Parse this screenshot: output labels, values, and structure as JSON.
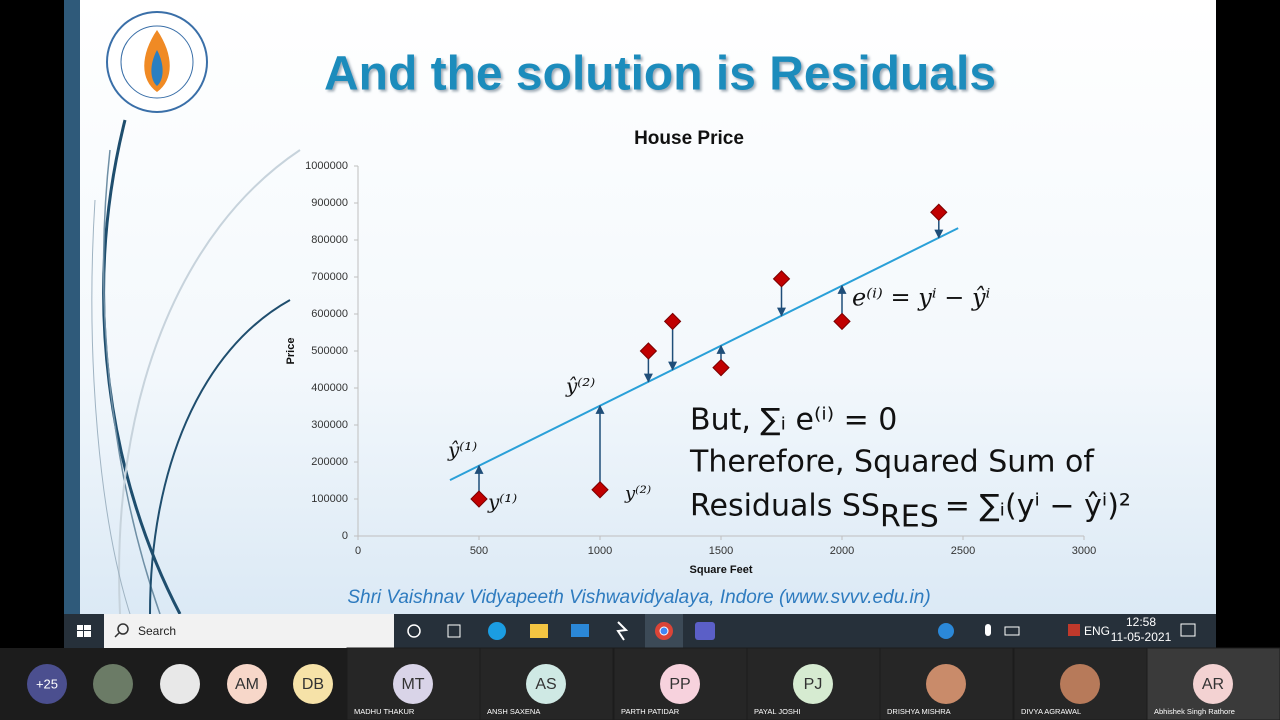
{
  "slide": {
    "title": "And the solution is Residuals",
    "footer": "Shri Vaishnav Vidyapeeth Vishwavidyalaya, Indore (www.svvv.edu.in)",
    "chart_data": {
      "type": "scatter",
      "title": "House Price",
      "x_label": "Square Feet",
      "y_label": "Price",
      "x": [
        500,
        1000,
        1200,
        1300,
        1500,
        1750,
        2000,
        2400
      ],
      "values": [
        100000,
        125000,
        500000,
        580000,
        455000,
        695000,
        580000,
        875000
      ],
      "color": "#c00000",
      "trendline": {
        "x": [
          380,
          2480
        ],
        "values": [
          151000,
          832000
        ],
        "color": "#2aa0d8"
      },
      "xlim": [
        0,
        3000
      ],
      "xticks": [
        0,
        500,
        1000,
        1500,
        2000,
        2500,
        3000
      ],
      "ylim": [
        0,
        1000000
      ],
      "yticks": [
        0,
        100000,
        200000,
        300000,
        400000,
        500000,
        600000,
        700000,
        800000,
        900000,
        1000000
      ],
      "annotations": [
        "ŷ⁽¹⁾",
        "y⁽¹⁾",
        "ŷ⁽²⁾",
        "y⁽²⁾",
        "e⁽ⁱ⁾ = yⁱ − ŷⁱ"
      ],
      "statements": [
        "But, ∑ᵢ e⁽ⁱ⁾ = 0",
        "Therefore, Squared Sum of",
        "Residuals SS",
        "RES",
        "= ∑ᵢ(yⁱ  − ŷⁱ)²"
      ]
    }
  },
  "taskbar": {
    "search": "Search",
    "language": "ENG",
    "time": "12:58",
    "date": "11-05-2021"
  },
  "participants": [
    {
      "initials": "+25"
    },
    {
      "initials": "AM"
    },
    {
      "initials": "DB"
    },
    {
      "initials": "MT",
      "name": "MADHU THAKUR"
    },
    {
      "initials": "AS",
      "name": "ANSH SAXENA"
    },
    {
      "initials": "PP",
      "name": "PARTH PATIDAR"
    },
    {
      "initials": "PJ",
      "name": "PAYAL JOSHI"
    },
    {
      "name": "DRISHYA MISHRA"
    },
    {
      "name": "DIVYA AGRAWAL"
    },
    {
      "initials": "AR",
      "name": "Abhishek Singh Rathore"
    }
  ]
}
